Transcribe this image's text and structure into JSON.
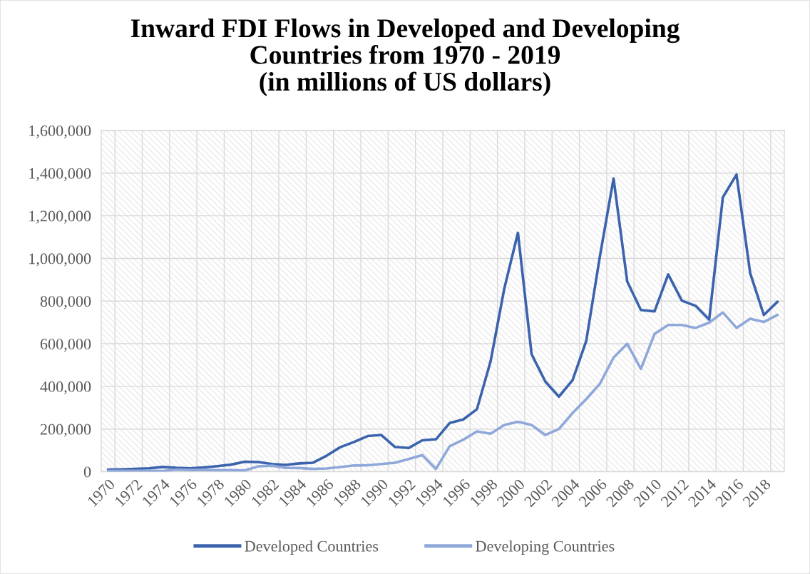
{
  "chart_data": {
    "type": "line",
    "title": "Inward FDI Flows in Developed and Developing\nCountries from 1970 - 2019\n(in millions of US dollars)",
    "categories": [
      "1970",
      null,
      "1972",
      null,
      "1974",
      null,
      "1976",
      null,
      "1978",
      null,
      "1980",
      null,
      "1982",
      null,
      "1984",
      null,
      "1986",
      null,
      "1988",
      null,
      "1990",
      null,
      "1992",
      null,
      "1994",
      null,
      "1996",
      null,
      "1998",
      null,
      "2000",
      null,
      "2002",
      null,
      "2004",
      null,
      "2006",
      null,
      "2008",
      null,
      "2010",
      null,
      "2012",
      null,
      "2014",
      null,
      "2016",
      null,
      "2018",
      null
    ],
    "series": [
      {
        "name": "Developed Countries",
        "color": "#3b63ad",
        "values": [
          10000,
          11000,
          13000,
          16000,
          22000,
          18000,
          16000,
          20000,
          26000,
          33000,
          47000,
          45000,
          36000,
          32000,
          39000,
          42000,
          75000,
          115000,
          139000,
          167000,
          172000,
          116000,
          111000,
          147000,
          152000,
          228000,
          245000,
          293000,
          518000,
          858000,
          1120000,
          551000,
          423000,
          352000,
          429000,
          613000,
          1010000,
          1375000,
          892000,
          758000,
          752000,
          925000,
          802000,
          778000,
          713000,
          1287000,
          1393000,
          931000,
          735000,
          797000
        ]
      },
      {
        "name": "Developing Countries",
        "color": "#8fa8da",
        "values": [
          4000,
          4000,
          4000,
          5000,
          3000,
          10000,
          8000,
          8000,
          7000,
          7000,
          6000,
          25000,
          28000,
          18000,
          17000,
          13000,
          15000,
          22000,
          29000,
          30000,
          36000,
          42000,
          59000,
          78000,
          13000,
          119000,
          150000,
          189000,
          178000,
          219000,
          234000,
          219000,
          172000,
          200000,
          275000,
          340000,
          412000,
          535000,
          600000,
          482000,
          646000,
          688000,
          688000,
          674000,
          699000,
          747000,
          674000,
          717000,
          702000,
          735000
        ]
      }
    ],
    "ylim": [
      0,
      1600000
    ],
    "yticks": [
      0,
      {
        "value": 200000,
        "label": "200,000"
      },
      {
        "value": 400000,
        "label": "400,000"
      },
      {
        "value": 600000,
        "label": "600,000"
      },
      {
        "value": 800000,
        "label": "800,000"
      },
      {
        "value": 1000000,
        "label": "1,000,000"
      },
      {
        "value": 1200000,
        "label": "1,200,000"
      },
      {
        "value": 1400000,
        "label": "1,400,000"
      },
      {
        "value": 1600000,
        "label": "1,600,000"
      }
    ],
    "grid": true,
    "legend": "bottom",
    "line_style": "solid"
  }
}
